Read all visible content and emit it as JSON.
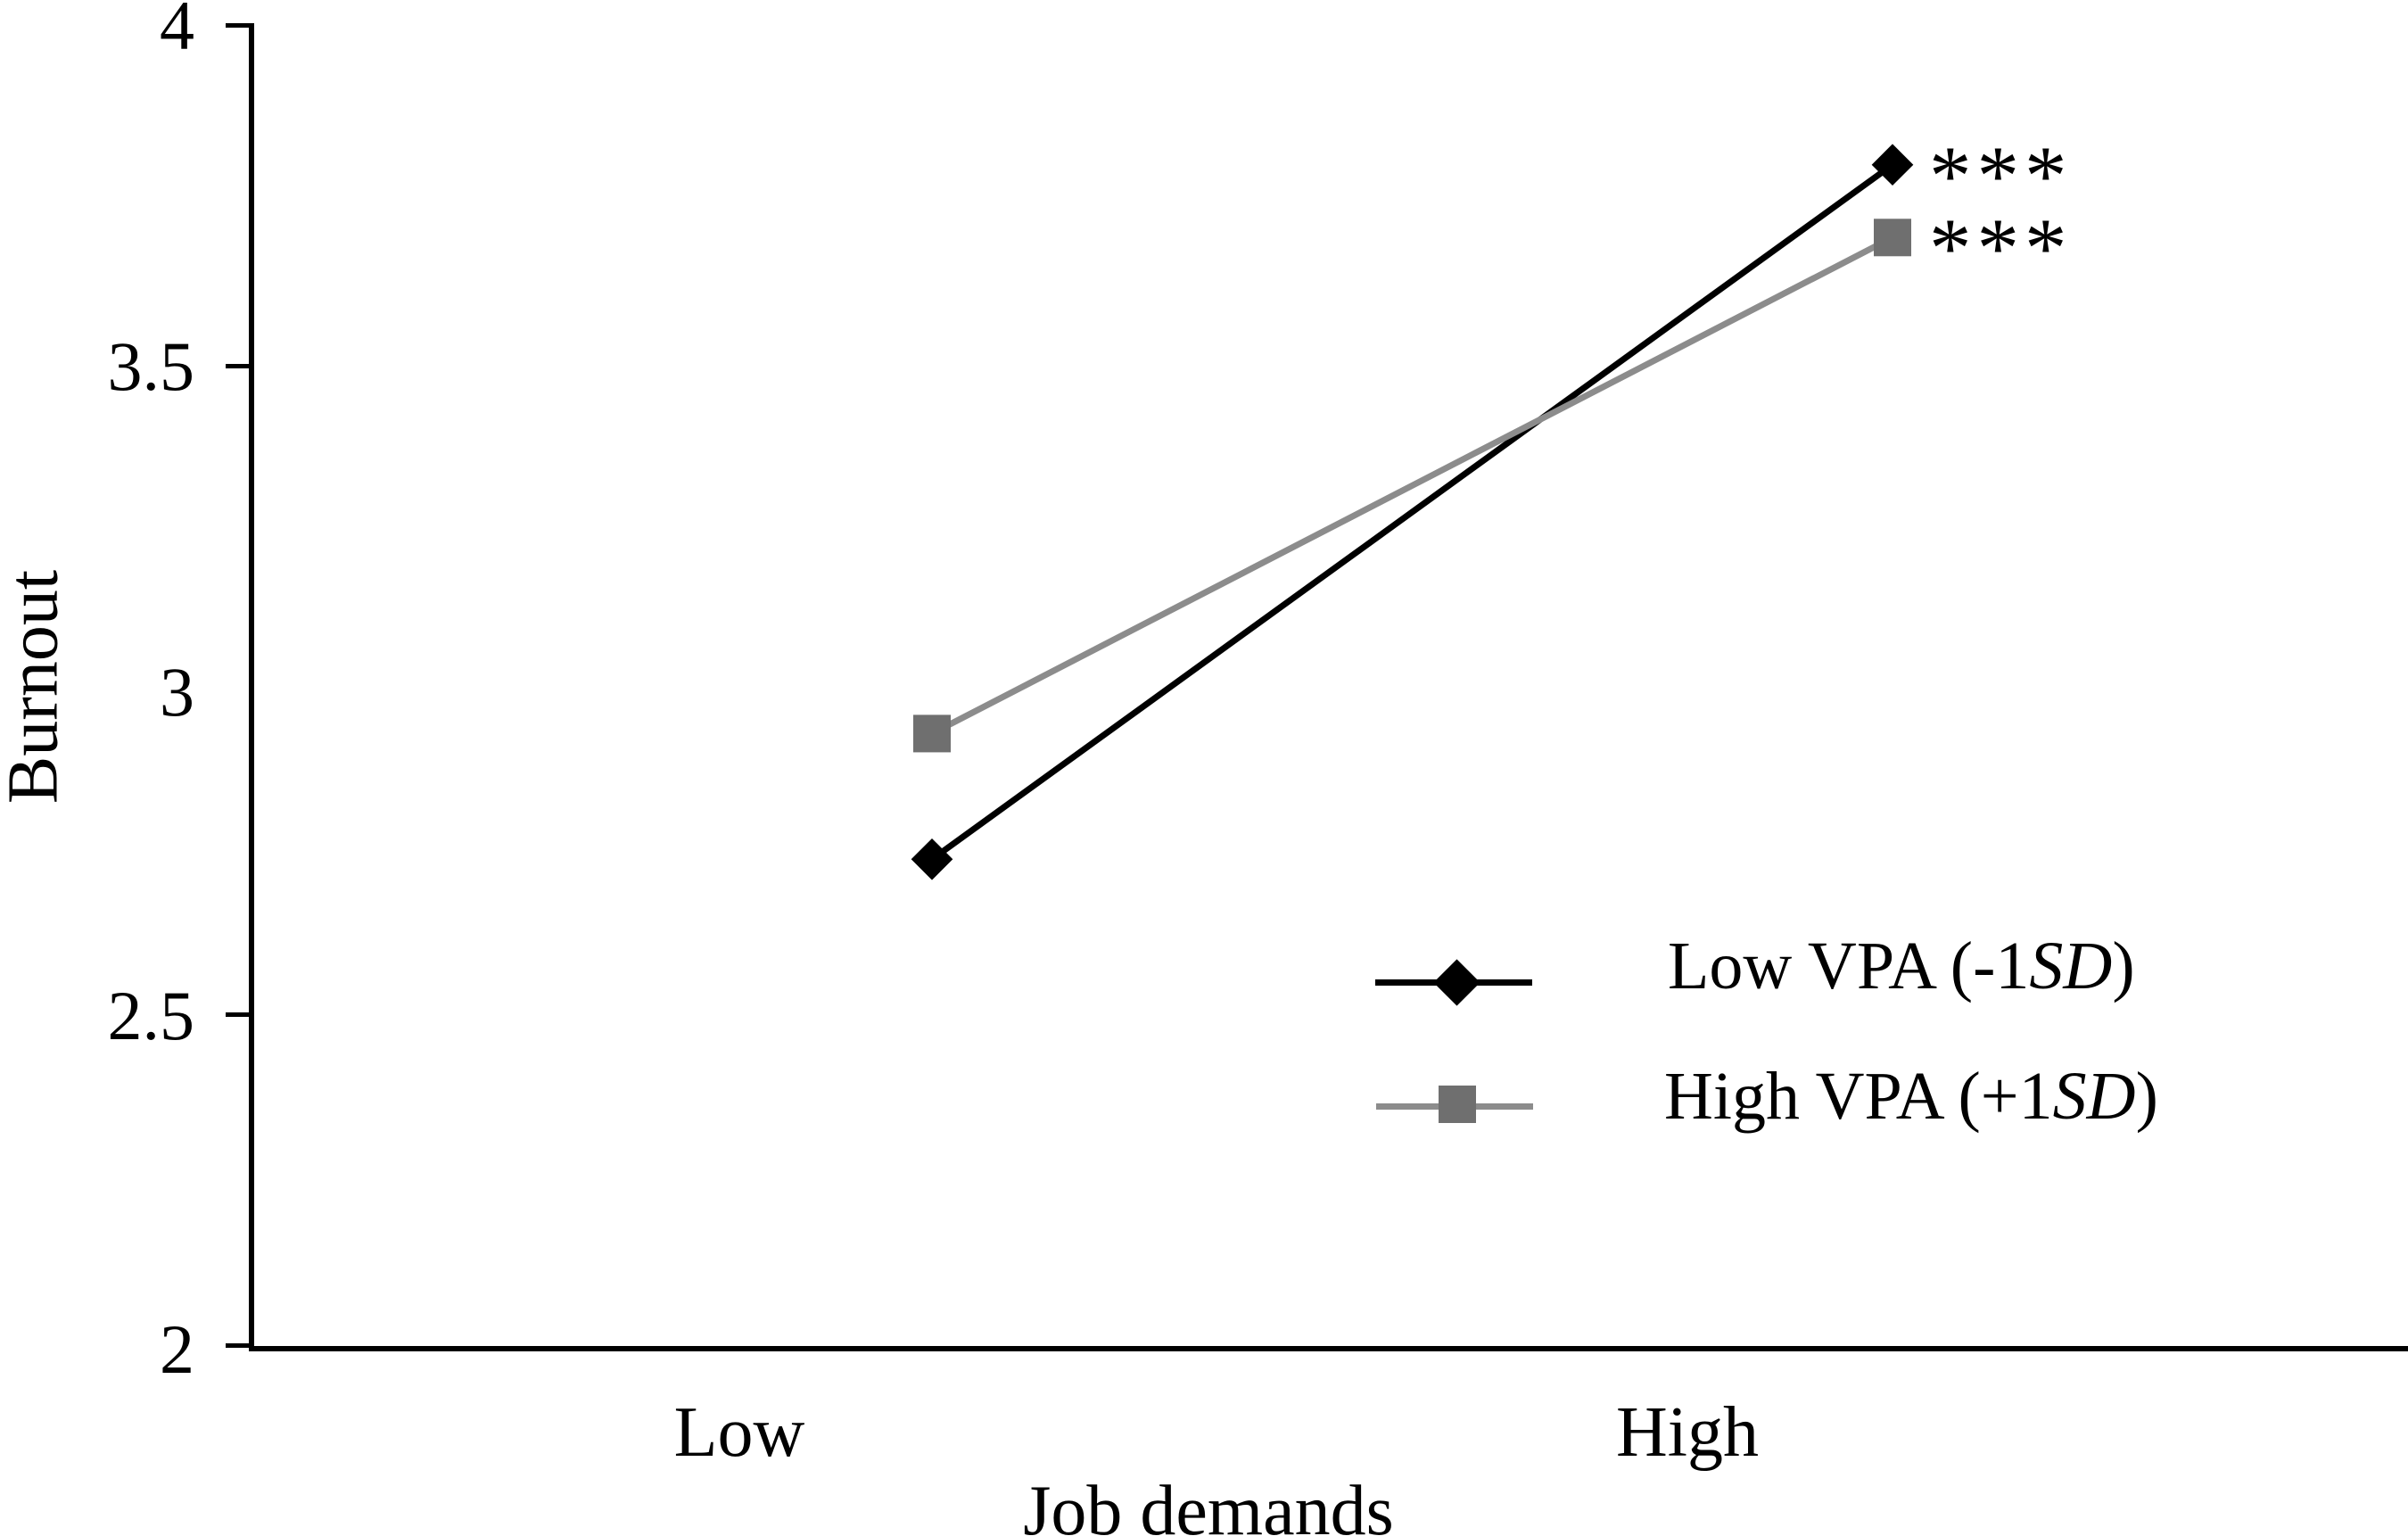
{
  "chart_data": {
    "type": "line",
    "title": "",
    "xlabel": "Job demands",
    "ylabel": "Burnout",
    "categories": [
      "Low",
      "High"
    ],
    "ylim": [
      2,
      4
    ],
    "ytick_labels": [
      "4",
      "3.5",
      "3",
      "2.5",
      "2"
    ],
    "grid": false,
    "legend_position": "lower-right",
    "series": [
      {
        "name": "Low VPA (-1SD)",
        "values": [
          2.74,
          3.79
        ],
        "color": "#000000",
        "line_color": "#000000",
        "marker": "diamond",
        "annotation": "***"
      },
      {
        "name": "High VPA (+1SD)",
        "values": [
          2.93,
          3.68
        ],
        "color": "#6f6f6f",
        "line_color": "#8c8c8c",
        "marker": "square",
        "annotation": "***"
      }
    ]
  },
  "legend": {
    "items": [
      {
        "prefix": "Low VPA (-1",
        "italic": "SD",
        "suffix": ")"
      },
      {
        "prefix": "High VPA (+1",
        "italic": "SD",
        "suffix": ")"
      }
    ]
  }
}
